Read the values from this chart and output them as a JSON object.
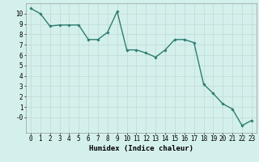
{
  "x": [
    0,
    1,
    2,
    3,
    4,
    5,
    6,
    7,
    8,
    9,
    10,
    11,
    12,
    13,
    14,
    15,
    16,
    17,
    18,
    19,
    20,
    21,
    22,
    23
  ],
  "y": [
    10.5,
    10.0,
    8.8,
    8.9,
    8.9,
    8.9,
    7.5,
    7.5,
    8.2,
    10.2,
    6.5,
    6.5,
    6.2,
    5.8,
    6.5,
    7.5,
    7.5,
    7.2,
    3.2,
    2.3,
    1.3,
    0.8,
    -0.8,
    -0.3
  ],
  "line_color": "#2e7d72",
  "marker": "D",
  "marker_size": 1.8,
  "bg_color": "#d4f0ec",
  "grid_color": "#c0d8d4",
  "xlabel": "Humidex (Indice chaleur)",
  "ylim": [
    -1.5,
    11.0
  ],
  "xlim": [
    -0.5,
    23.5
  ],
  "yticks": [
    0,
    1,
    2,
    3,
    4,
    5,
    6,
    7,
    8,
    9,
    10
  ],
  "xticks": [
    0,
    1,
    2,
    3,
    4,
    5,
    6,
    7,
    8,
    9,
    10,
    11,
    12,
    13,
    14,
    15,
    16,
    17,
    18,
    19,
    20,
    21,
    22,
    23
  ],
  "xlabel_fontsize": 6.5,
  "tick_fontsize": 5.5,
  "linewidth": 1.0
}
